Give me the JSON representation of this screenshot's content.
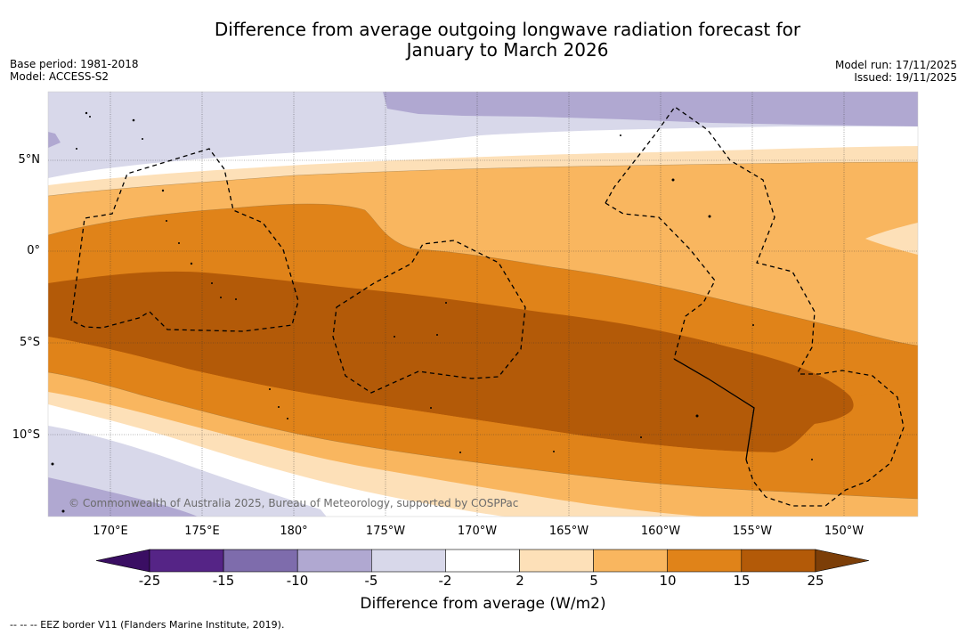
{
  "title": {
    "line1": "Difference from average outgoing longwave radiation forecast for",
    "line2": "January to March 2026"
  },
  "meta_left": {
    "base_period": "Base period: 1981-2018",
    "model": "Model: ACCESS-S2"
  },
  "meta_right": {
    "model_run": "Model run: 17/11/2025",
    "issued": "Issued: 19/11/2025"
  },
  "map": {
    "lon_ticks": [
      "170°E",
      "175°E",
      "180°",
      "175°W",
      "170°W",
      "165°W",
      "160°W",
      "155°W",
      "150°W"
    ],
    "lat_ticks": [
      "5°N",
      "0°",
      "5°S",
      "10°S"
    ],
    "copyright": "© Commonwealth of Australia 2025, Bureau of Meteorology, supported by COSPPac"
  },
  "colorbar": {
    "labels": [
      "-25",
      "-15",
      "-10",
      "-5",
      "-2",
      "2",
      "5",
      "10",
      "15",
      "25"
    ],
    "colors": [
      "#552486",
      "#7e6cac",
      "#b0a8d1",
      "#d8d8ea",
      "#ffffff",
      "#fde0b8",
      "#f9b65f",
      "#e08319",
      "#b35a08"
    ],
    "extend_low_color": "#3a0e63",
    "extend_high_color": "#7c3e08",
    "title": "Difference from average (W/m2)"
  },
  "footnote": "--  --  -- EEZ border V11 (Flanders Marine Institute, 2019)."
}
